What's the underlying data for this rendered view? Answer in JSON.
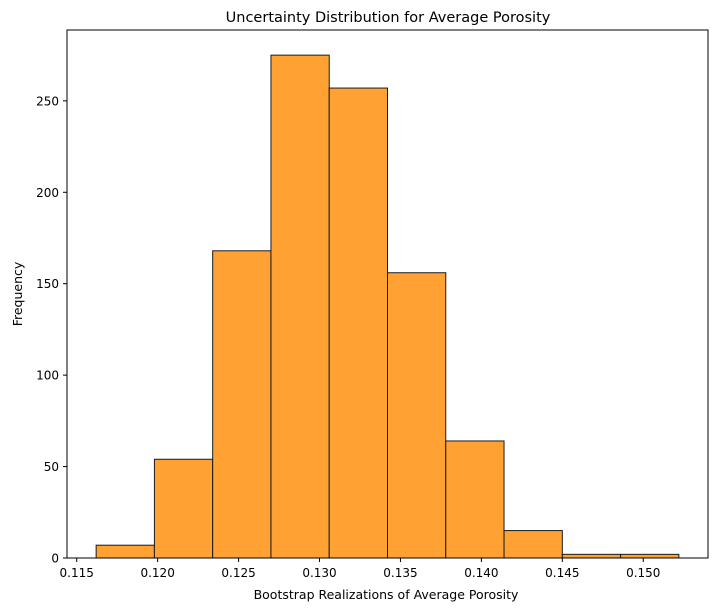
{
  "chart_data": {
    "type": "bar",
    "title": "Uncertainty Distribution for Average Porosity",
    "xlabel": "Bootstrap Realizations of Average Porosity",
    "ylabel": "Frequency",
    "bins": [
      {
        "start": 0.1162,
        "end": 0.1198,
        "count": 7
      },
      {
        "start": 0.1198,
        "end": 0.1234,
        "count": 54
      },
      {
        "start": 0.1234,
        "end": 0.127,
        "count": 168
      },
      {
        "start": 0.127,
        "end": 0.1306,
        "count": 275
      },
      {
        "start": 0.1306,
        "end": 0.1342,
        "count": 257
      },
      {
        "start": 0.1342,
        "end": 0.1378,
        "count": 156
      },
      {
        "start": 0.1378,
        "end": 0.1414,
        "count": 64
      },
      {
        "start": 0.1414,
        "end": 0.145,
        "count": 15
      },
      {
        "start": 0.145,
        "end": 0.1486,
        "count": 2
      },
      {
        "start": 0.1486,
        "end": 0.1522,
        "count": 2
      }
    ],
    "xlim": [
      0.1144,
      0.154
    ],
    "ylim": [
      0,
      288.75
    ],
    "xticks": [
      {
        "value": 0.115,
        "label": "0.115"
      },
      {
        "value": 0.12,
        "label": "0.120"
      },
      {
        "value": 0.125,
        "label": "0.125"
      },
      {
        "value": 0.13,
        "label": "0.130"
      },
      {
        "value": 0.135,
        "label": "0.135"
      },
      {
        "value": 0.14,
        "label": "0.140"
      },
      {
        "value": 0.145,
        "label": "0.145"
      },
      {
        "value": 0.15,
        "label": "0.150"
      }
    ],
    "yticks": [
      {
        "value": 0,
        "label": "0"
      },
      {
        "value": 50,
        "label": "50"
      },
      {
        "value": 100,
        "label": "100"
      },
      {
        "value": 150,
        "label": "150"
      },
      {
        "value": 200,
        "label": "200"
      },
      {
        "value": 250,
        "label": "250"
      }
    ],
    "bar_color": "#ffa233",
    "edge_color": "#1a1a1a",
    "grid": false,
    "legend": "none"
  }
}
